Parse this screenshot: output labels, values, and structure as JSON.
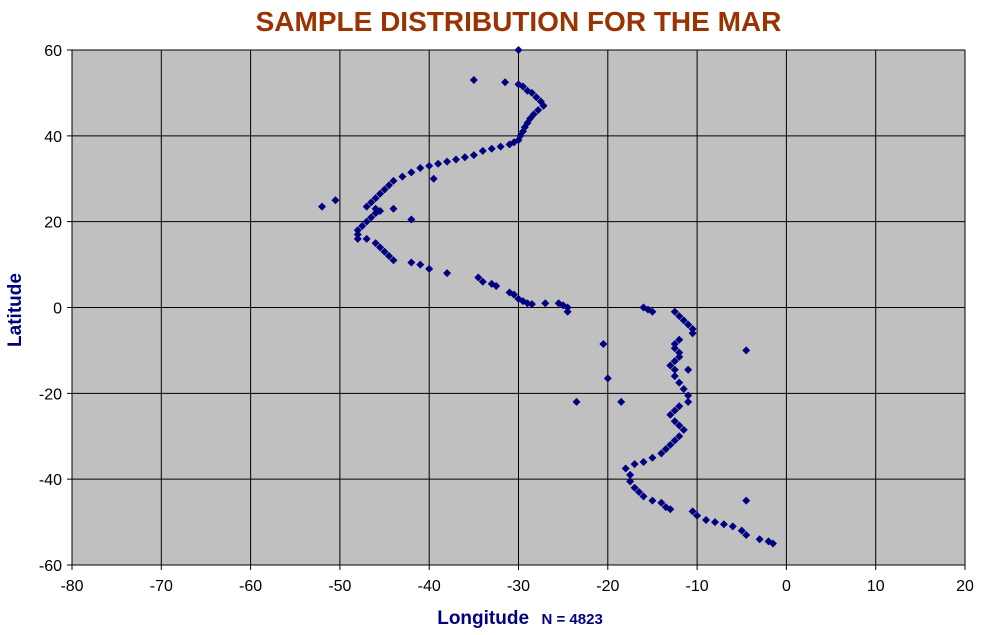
{
  "chart_data": {
    "type": "scatter",
    "title": "SAMPLE DISTRIBUTION FOR THE MAR",
    "xlabel": "Longitude",
    "ylabel": "Latitude",
    "annotation": "N = 4823",
    "xlim": [
      -80,
      20
    ],
    "ylim": [
      -60,
      60
    ],
    "x_ticks": [
      "-80",
      "-70",
      "-60",
      "-50",
      "-40",
      "-30",
      "-20",
      "-10",
      "0",
      "10",
      "20"
    ],
    "y_ticks": [
      "60",
      "40",
      "20",
      "0",
      "-20",
      "-40",
      "-60"
    ],
    "grid": true,
    "marker_color": "#000080",
    "plot_background": "#c0c0c0",
    "title_color": "#993300",
    "series": [
      {
        "marker": "diamond",
        "points": [
          [
            -30.0,
            60.0
          ],
          [
            -35.0,
            53.0
          ],
          [
            -31.5,
            52.5
          ],
          [
            -30.0,
            52.0
          ],
          [
            -29.5,
            51.5
          ],
          [
            -29.0,
            50.5
          ],
          [
            -28.5,
            50.0
          ],
          [
            -28.0,
            49.0
          ],
          [
            -27.5,
            48.0
          ],
          [
            -27.2,
            47.0
          ],
          [
            -27.8,
            46.0
          ],
          [
            -28.3,
            45.0
          ],
          [
            -28.7,
            44.0
          ],
          [
            -29.0,
            43.0
          ],
          [
            -29.3,
            42.0
          ],
          [
            -29.5,
            41.0
          ],
          [
            -29.8,
            40.0
          ],
          [
            -30.0,
            39.0
          ],
          [
            -30.5,
            38.5
          ],
          [
            -31.0,
            38.0
          ],
          [
            -32.0,
            37.5
          ],
          [
            -33.0,
            37.0
          ],
          [
            -34.0,
            36.5
          ],
          [
            -35.0,
            35.5
          ],
          [
            -36.0,
            35.0
          ],
          [
            -37.0,
            34.5
          ],
          [
            -38.0,
            34.0
          ],
          [
            -39.0,
            33.5
          ],
          [
            -40.0,
            33.0
          ],
          [
            -41.0,
            32.5
          ],
          [
            -42.0,
            31.5
          ],
          [
            -43.0,
            30.5
          ],
          [
            -44.0,
            29.5
          ],
          [
            -44.5,
            28.5
          ],
          [
            -45.0,
            27.5
          ],
          [
            -45.5,
            26.5
          ],
          [
            -46.0,
            25.5
          ],
          [
            -46.5,
            24.5
          ],
          [
            -47.0,
            23.5
          ],
          [
            -46.0,
            23.0
          ],
          [
            -45.5,
            22.5
          ],
          [
            -46.0,
            22.0
          ],
          [
            -46.5,
            21.0
          ],
          [
            -47.0,
            20.0
          ],
          [
            -47.5,
            19.0
          ],
          [
            -48.0,
            18.0
          ],
          [
            -48.0,
            17.0
          ],
          [
            -48.0,
            16.0
          ],
          [
            -47.0,
            16.0
          ],
          [
            -46.0,
            15.0
          ],
          [
            -45.5,
            14.0
          ],
          [
            -45.0,
            13.0
          ],
          [
            -44.5,
            12.0
          ],
          [
            -44.0,
            11.0
          ],
          [
            -42.0,
            10.5
          ],
          [
            -41.0,
            10.0
          ],
          [
            -40.0,
            9.0
          ],
          [
            -38.0,
            8.0
          ],
          [
            -34.5,
            7.0
          ],
          [
            -34.0,
            6.0
          ],
          [
            -33.0,
            5.5
          ],
          [
            -32.5,
            5.0
          ],
          [
            -31.0,
            3.5
          ],
          [
            -30.5,
            3.0
          ],
          [
            -30.0,
            2.0
          ],
          [
            -29.5,
            1.5
          ],
          [
            -29.0,
            1.0
          ],
          [
            -28.5,
            0.8
          ],
          [
            -27.0,
            1.0
          ],
          [
            -25.5,
            1.0
          ],
          [
            -25.0,
            0.5
          ],
          [
            -24.5,
            0.0
          ],
          [
            -24.5,
            -1.0
          ],
          [
            -23.5,
            -22.0
          ],
          [
            -20.5,
            -8.5
          ],
          [
            -20.0,
            -16.5
          ],
          [
            -18.5,
            -22.0
          ],
          [
            -16.0,
            0.0
          ],
          [
            -15.5,
            -0.5
          ],
          [
            -15.0,
            -1.0
          ],
          [
            -12.5,
            -1.0
          ],
          [
            -12.0,
            -2.0
          ],
          [
            -11.5,
            -3.0
          ],
          [
            -11.0,
            -4.0
          ],
          [
            -10.5,
            -5.0
          ],
          [
            -10.5,
            -6.0
          ],
          [
            -12.0,
            -7.5
          ],
          [
            -12.5,
            -8.5
          ],
          [
            -12.5,
            -9.5
          ],
          [
            -12.0,
            -10.5
          ],
          [
            -12.0,
            -11.5
          ],
          [
            -12.5,
            -12.5
          ],
          [
            -13.0,
            -13.5
          ],
          [
            -12.5,
            -14.5
          ],
          [
            -11.0,
            -14.5
          ],
          [
            -12.5,
            -16.0
          ],
          [
            -12.0,
            -17.5
          ],
          [
            -11.5,
            -19.0
          ],
          [
            -11.0,
            -20.5
          ],
          [
            -11.0,
            -22.0
          ],
          [
            -12.0,
            -23.0
          ],
          [
            -12.5,
            -24.0
          ],
          [
            -13.0,
            -25.0
          ],
          [
            -12.5,
            -26.5
          ],
          [
            -12.0,
            -27.5
          ],
          [
            -11.5,
            -28.5
          ],
          [
            -12.0,
            -30.0
          ],
          [
            -12.5,
            -31.0
          ],
          [
            -13.0,
            -32.0
          ],
          [
            -13.5,
            -33.0
          ],
          [
            -14.0,
            -34.0
          ],
          [
            -15.0,
            -35.0
          ],
          [
            -16.0,
            -36.0
          ],
          [
            -17.0,
            -36.5
          ],
          [
            -18.0,
            -37.5
          ],
          [
            -17.5,
            -39.0
          ],
          [
            -17.5,
            -40.5
          ],
          [
            -17.0,
            -42.0
          ],
          [
            -16.5,
            -43.0
          ],
          [
            -16.0,
            -44.0
          ],
          [
            -15.0,
            -45.0
          ],
          [
            -14.0,
            -45.5
          ],
          [
            -13.5,
            -46.5
          ],
          [
            -13.0,
            -47.0
          ],
          [
            -10.5,
            -47.5
          ],
          [
            -10.0,
            -48.5
          ],
          [
            -9.0,
            -49.5
          ],
          [
            -8.0,
            -50.0
          ],
          [
            -7.0,
            -50.5
          ],
          [
            -6.0,
            -51.0
          ],
          [
            -5.0,
            -52.0
          ],
          [
            -4.5,
            -53.0
          ],
          [
            -3.0,
            -54.0
          ],
          [
            -2.0,
            -54.5
          ],
          [
            -1.5,
            -55.0
          ],
          [
            -4.5,
            -10.0
          ],
          [
            -4.5,
            -45.0
          ],
          [
            -52.0,
            23.5
          ],
          [
            -50.5,
            25.0
          ],
          [
            -42.0,
            20.5
          ],
          [
            -39.5,
            30.0
          ],
          [
            -44.0,
            23.0
          ]
        ]
      }
    ]
  }
}
